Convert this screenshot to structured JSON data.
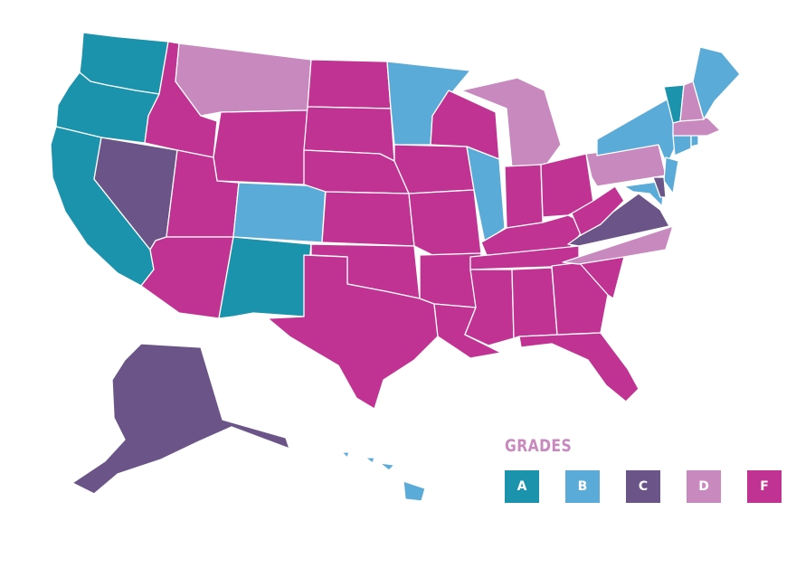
{
  "grade_colors": {
    "A": "#1b93ad",
    "B": "#5aabd8",
    "C": "#6b5488",
    "D": "#c889bf",
    "F": "#c13393"
  },
  "legend": {
    "title": "GRADES",
    "title_color": "#c889bf",
    "items": [
      {
        "grade": "A",
        "label": "A"
      },
      {
        "grade": "B",
        "label": "B"
      },
      {
        "grade": "C",
        "label": "C"
      },
      {
        "grade": "D",
        "label": "D"
      },
      {
        "grade": "F",
        "label": "F"
      }
    ]
  },
  "state_grades": {
    "WA": "A",
    "OR": "A",
    "CA": "A",
    "NM": "A",
    "VT": "A",
    "DE": "C",
    "MN": "B",
    "CO": "B",
    "IL": "B",
    "NY": "B",
    "ME": "B",
    "NJ": "B",
    "CT": "B",
    "MD": "B",
    "RI": "B",
    "NV": "C",
    "VA": "C",
    "AK": "C",
    "MT": "D",
    "MI": "D",
    "PA": "D",
    "NC": "D",
    "NH": "D",
    "MA": "D",
    "ID": "F",
    "WY": "F",
    "UT": "F",
    "AZ": "F",
    "ND": "F",
    "SD": "F",
    "NE": "F",
    "KS": "F",
    "OK": "F",
    "TX": "F",
    "IA": "F",
    "MO": "F",
    "AR": "F",
    "LA": "F",
    "WI": "F",
    "IN": "F",
    "OH": "F",
    "KY": "F",
    "TN": "F",
    "MS": "F",
    "AL": "F",
    "GA": "F",
    "FL": "F",
    "SC": "F",
    "WV": "F",
    "HI": "B"
  }
}
